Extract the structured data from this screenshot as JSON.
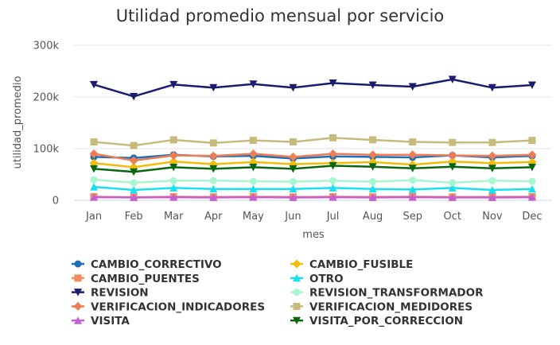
{
  "chart_data": {
    "type": "line",
    "title": "Utilidad promedio mensual por servicio",
    "xlabel": "mes",
    "ylabel": "utilidad_promedio",
    "categories": [
      "Jan",
      "Feb",
      "Mar",
      "Apr",
      "May",
      "Jun",
      "Jul",
      "Aug",
      "Sep",
      "Oct",
      "Nov",
      "Dec"
    ],
    "yticks": [
      "0",
      "100k",
      "200k",
      "300k"
    ],
    "ylim": [
      0,
      300000
    ],
    "grid": true,
    "legend_position": "bottom",
    "series": [
      {
        "name": "CAMBIO_CORRECTIVO",
        "color": "#1f6fb8",
        "marker": "circle",
        "values": [
          84000,
          82000,
          88000,
          85000,
          86000,
          81000,
          85000,
          84000,
          83000,
          87000,
          83000,
          86000
        ]
      },
      {
        "name": "CAMBIO_FUSIBLE",
        "color": "#f2bc0a",
        "marker": "diamond",
        "values": [
          72000,
          64000,
          75000,
          70000,
          74000,
          70000,
          72000,
          74000,
          69000,
          75000,
          72000,
          74000
        ]
      },
      {
        "name": "CAMBIO_PUENTES",
        "color": "#f58a5a",
        "marker": "square",
        "values": [
          7000,
          6000,
          7000,
          6500,
          7000,
          6500,
          7000,
          6500,
          7000,
          6500,
          6500,
          7000
        ]
      },
      {
        "name": "OTRO",
        "color": "#19e0ef",
        "marker": "triangle",
        "values": [
          26000,
          20000,
          24000,
          22000,
          22000,
          22000,
          24000,
          22000,
          21000,
          24000,
          20000,
          22000
        ]
      },
      {
        "name": "REVISION",
        "color": "#1a1d6d",
        "marker": "triangle-down",
        "values": [
          224000,
          201000,
          224000,
          218000,
          225000,
          218000,
          227000,
          223000,
          220000,
          234000,
          218000,
          223000
        ]
      },
      {
        "name": "REVISION_TRANSFORMADOR",
        "color": "#a8f5d0",
        "marker": "circle",
        "values": [
          40000,
          34000,
          38000,
          38000,
          37000,
          36000,
          38000,
          36000,
          39000,
          34000,
          38000,
          37000
        ]
      },
      {
        "name": "VERIFICACION_INDICADORES",
        "color": "#f07c55",
        "marker": "diamond",
        "values": [
          90000,
          77000,
          87000,
          86000,
          90000,
          84000,
          90000,
          88000,
          88000,
          87000,
          86000,
          88000
        ]
      },
      {
        "name": "VERIFICACION_MEDIDORES",
        "color": "#c7bb7c",
        "marker": "square",
        "values": [
          113000,
          106000,
          117000,
          111000,
          116000,
          113000,
          121000,
          117000,
          113000,
          112000,
          112000,
          116000
        ]
      },
      {
        "name": "VISITA",
        "color": "#c35fd6",
        "marker": "triangle",
        "values": [
          6000,
          5500,
          6000,
          5500,
          6000,
          5500,
          6000,
          5500,
          6000,
          5500,
          5500,
          6000
        ]
      },
      {
        "name": "VISITA_POR_CORRECCION",
        "color": "#0b6610",
        "marker": "triangle-down",
        "values": [
          61000,
          55000,
          64000,
          61000,
          64000,
          61000,
          67000,
          65000,
          62000,
          65000,
          62000,
          64000
        ]
      }
    ]
  }
}
